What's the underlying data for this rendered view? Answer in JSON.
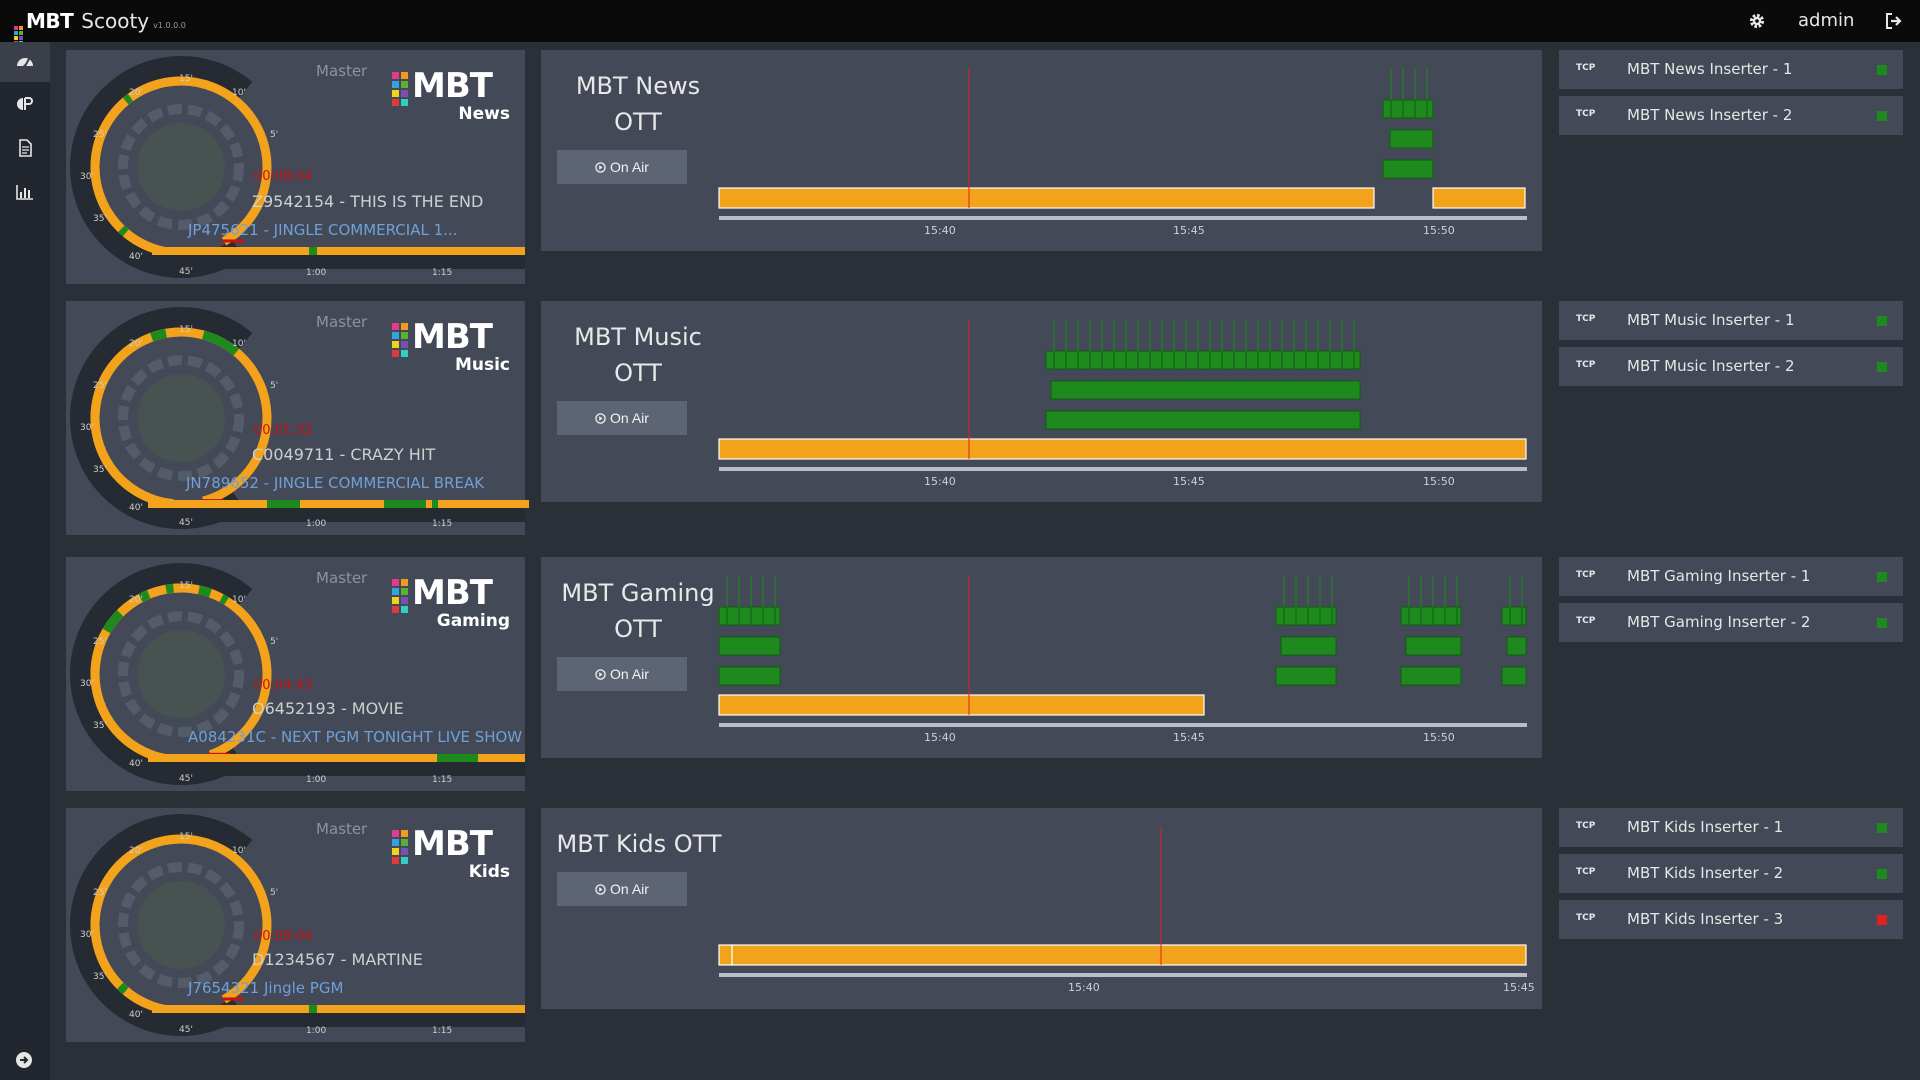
{
  "app": {
    "brand": "MBT",
    "name": "Scooty",
    "version": "v1.0.0.0",
    "user": "admin"
  },
  "colors": {
    "accent": "#f3a21b",
    "ok": "#1e8a1e",
    "error": "#e02020",
    "countdown": "#cc1111",
    "next_clip": "#6fa0d8"
  },
  "nav": [
    {
      "icon": "dashboard-icon",
      "active": true
    },
    {
      "icon": "playlist-icon",
      "active": false
    },
    {
      "icon": "document-icon",
      "active": false
    },
    {
      "icon": "chart-icon",
      "active": false
    }
  ],
  "clock_ticks": {
    "t15": "15'",
    "t10": "10'",
    "t5": "5'",
    "t20": "20'",
    "t25": "25'",
    "t30": "30'",
    "t35": "35'",
    "t40": "40'",
    "t45": "45'",
    "m100": "1:00",
    "m115": "1:15"
  },
  "channels": [
    {
      "id": "news",
      "logo_sub": "News",
      "master": "Master",
      "countdown": "00:08:04",
      "current_clip": "Z9542154 - THIS IS THE END",
      "next_clip": "JP475621 - JINGLE COMMERCIAL 1...",
      "title_line1": "MBT News",
      "title_line2": "OTT",
      "on_air": "On Air",
      "time_ticks": [
        "15:40",
        "15:45",
        "15:50"
      ],
      "inserters": [
        {
          "name": "MBT News Inserter - 1",
          "protocol": "TCP",
          "status": "ok"
        },
        {
          "name": "MBT News Inserter - 2",
          "protocol": "TCP",
          "status": "ok"
        }
      ]
    },
    {
      "id": "music",
      "logo_sub": "Music",
      "master": "Master",
      "countdown": "00:01:32",
      "current_clip": "C0049711 - CRAZY HIT",
      "next_clip": "JN789652 - JINGLE COMMERCIAL BREAK",
      "title_line1": "MBT Music",
      "title_line2": "OTT",
      "on_air": "On Air",
      "time_ticks": [
        "15:40",
        "15:45",
        "15:50"
      ],
      "inserters": [
        {
          "name": "MBT Music Inserter - 1",
          "protocol": "TCP",
          "status": "ok"
        },
        {
          "name": "MBT Music Inserter - 2",
          "protocol": "TCP",
          "status": "ok"
        }
      ]
    },
    {
      "id": "gaming",
      "logo_sub": "Gaming",
      "master": "Master",
      "countdown": "00:04:43",
      "current_clip": "O6452193 - MOVIE",
      "next_clip": "A084231C - NEXT PGM TONIGHT LIVE SHOW",
      "title_line1": "MBT Gaming",
      "title_line2": "OTT",
      "on_air": "On Air",
      "time_ticks": [
        "15:40",
        "15:45",
        "15:50"
      ],
      "inserters": [
        {
          "name": "MBT Gaming Inserter - 1",
          "protocol": "TCP",
          "status": "ok"
        },
        {
          "name": "MBT Gaming Inserter - 2",
          "protocol": "TCP",
          "status": "ok"
        }
      ]
    },
    {
      "id": "kids",
      "logo_sub": "Kids",
      "master": "Master",
      "countdown": "00:08:04",
      "current_clip": "D1234567 - MARTINE",
      "next_clip": "J7654321 Jingle PGM",
      "title_line1": "MBT Kids OTT",
      "title_line2": "",
      "on_air": "On Air",
      "time_ticks": [
        "15:40",
        "15:45"
      ],
      "inserters": [
        {
          "name": "MBT Kids Inserter - 1",
          "protocol": "TCP",
          "status": "ok"
        },
        {
          "name": "MBT Kids Inserter - 2",
          "protocol": "TCP",
          "status": "ok"
        },
        {
          "name": "MBT Kids Inserter - 3",
          "protocol": "TCP",
          "status": "error"
        }
      ]
    }
  ]
}
